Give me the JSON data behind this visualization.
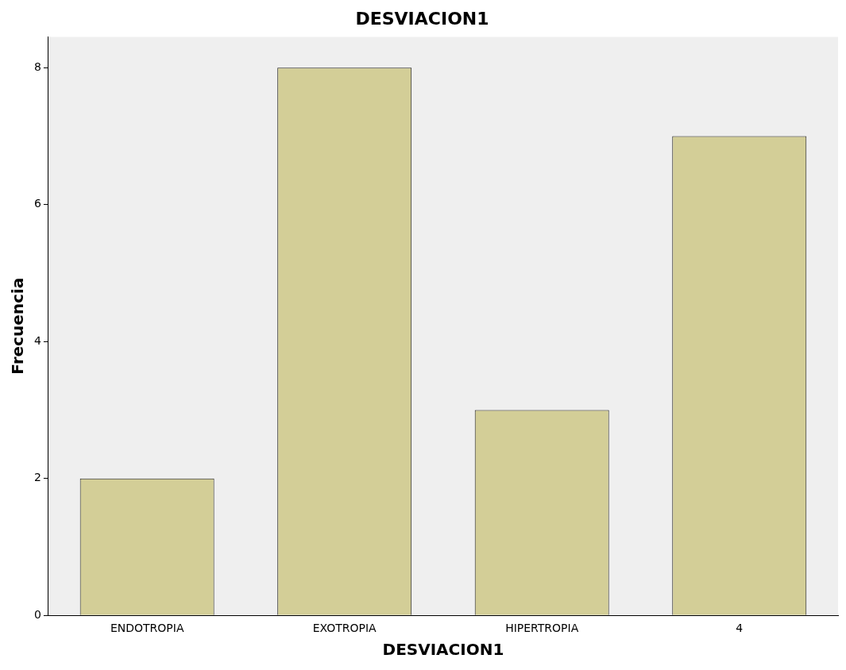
{
  "chart_data": {
    "type": "bar",
    "title": "DESVIACION1",
    "xlabel": "DESVIACION1",
    "ylabel": "Frecuencia",
    "categories": [
      "ENDOTROPIA",
      "EXOTROPIA",
      "HIPERTROPIA",
      "4"
    ],
    "values": [
      2,
      8,
      3,
      7
    ],
    "color": "#d3ce97",
    "ylim": [
      0,
      8.45
    ],
    "yticks": [
      0,
      2,
      4,
      6,
      8
    ],
    "grid": false,
    "legend": false
  }
}
